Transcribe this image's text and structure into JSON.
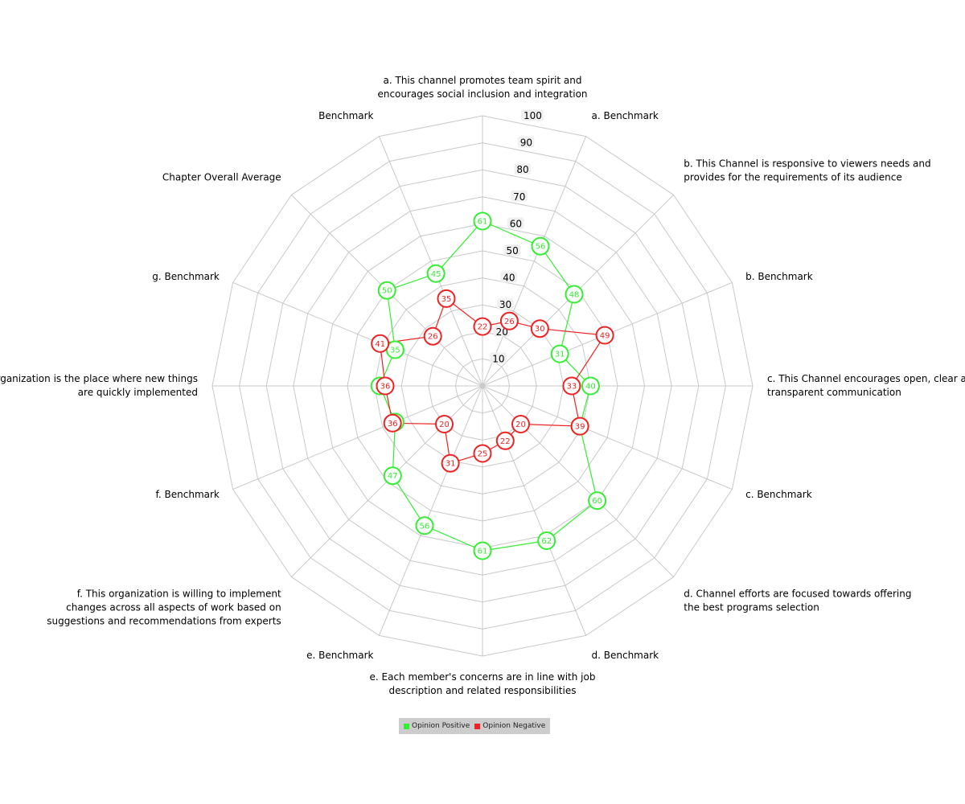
{
  "chart_data": {
    "type": "radar",
    "rmax": 100,
    "ticks": [
      10,
      20,
      30,
      40,
      50,
      60,
      70,
      80,
      90,
      100
    ],
    "axes": [
      [
        "a. This channel promotes team spirit and",
        "encourages social inclusion and integration"
      ],
      [
        "a. Benchmark"
      ],
      [
        "b. This Channel is responsive to viewers needs and",
        "provides for the requirements of its audience"
      ],
      [
        "b. Benchmark"
      ],
      [
        "c. This Channel encourages open, clear and",
        "transparent communication"
      ],
      [
        "c. Benchmark"
      ],
      [
        "d. Channel efforts are focused towards offering",
        "the best programs selection"
      ],
      [
        "d. Benchmark"
      ],
      [
        "e. Each member's concerns are in line with job",
        "description and related responsibilities"
      ],
      [
        "e. Benchmark"
      ],
      [
        "f. This organization  is willing to implement",
        "changes across all aspects of work based on",
        "suggestions and recommendations from experts"
      ],
      [
        "f. Benchmark"
      ],
      [
        "g. This organization is the place where new things",
        "are quickly implemented"
      ],
      [
        "g. Benchmark"
      ],
      [
        "Chapter Overall Average"
      ],
      [
        "Benchmark"
      ]
    ],
    "series": [
      {
        "name": "Opinion Positive",
        "color": "#33ee33",
        "values": [
          61,
          56,
          48,
          31,
          40,
          39,
          60,
          62,
          61,
          56,
          47,
          35,
          38,
          35,
          50,
          45
        ]
      },
      {
        "name": "Opinion Negative",
        "color": "#ee2222",
        "values": [
          22,
          26,
          30,
          49,
          33,
          39,
          20,
          22,
          25,
          31,
          20,
          36,
          36,
          41,
          26,
          35
        ]
      }
    ],
    "legend": "bottom",
    "grid": true
  }
}
